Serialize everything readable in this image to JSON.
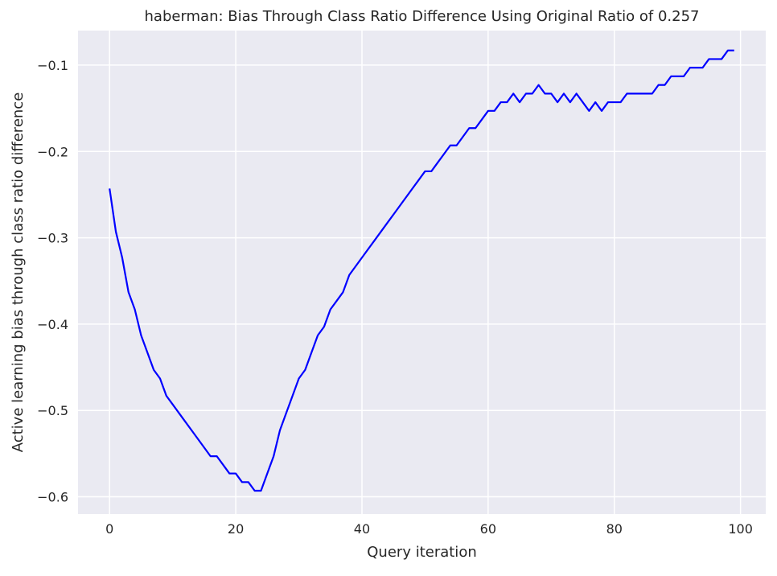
{
  "chart_data": {
    "type": "line",
    "title": "haberman: Bias Through Class Ratio Difference Using Original Ratio of 0.257",
    "xlabel": "Query iteration",
    "ylabel": "Active learning bias through class ratio difference",
    "xlim": [
      -5,
      104
    ],
    "ylim": [
      -0.62,
      -0.06
    ],
    "xticks": [
      0,
      20,
      40,
      60,
      80,
      100
    ],
    "xtick_labels": [
      "0",
      "20",
      "40",
      "60",
      "80",
      "100"
    ],
    "yticks": [
      -0.6,
      -0.5,
      -0.4,
      -0.3,
      -0.2,
      -0.1
    ],
    "ytick_labels": [
      "−0.6",
      "−0.5",
      "−0.4",
      "−0.3",
      "−0.2",
      "−0.1"
    ],
    "grid": true,
    "background": "#eaeaf2",
    "grid_color": "#ffffff",
    "series": [
      {
        "color": "#0000ff",
        "x": [
          0,
          1,
          2,
          3,
          4,
          5,
          6,
          7,
          8,
          9,
          10,
          11,
          12,
          13,
          14,
          15,
          16,
          17,
          18,
          19,
          20,
          21,
          22,
          23,
          24,
          25,
          26,
          27,
          28,
          29,
          30,
          31,
          32,
          33,
          34,
          35,
          36,
          37,
          38,
          39,
          40,
          41,
          42,
          43,
          44,
          45,
          46,
          47,
          48,
          49,
          50,
          51,
          52,
          53,
          54,
          55,
          56,
          57,
          58,
          59,
          60,
          61,
          62,
          63,
          64,
          65,
          66,
          67,
          68,
          69,
          70,
          71,
          72,
          73,
          74,
          75,
          76,
          77,
          78,
          79,
          80,
          81,
          82,
          83,
          84,
          85,
          86,
          87,
          88,
          89,
          90,
          91,
          92,
          93,
          94,
          95,
          96,
          97,
          98,
          99
        ],
        "y": [
          -0.243,
          -0.293,
          -0.323,
          -0.363,
          -0.383,
          -0.413,
          -0.433,
          -0.453,
          -0.463,
          -0.483,
          -0.493,
          -0.503,
          -0.513,
          -0.523,
          -0.533,
          -0.543,
          -0.553,
          -0.553,
          -0.563,
          -0.573,
          -0.573,
          -0.583,
          -0.583,
          -0.593,
          -0.593,
          -0.573,
          -0.553,
          -0.523,
          -0.503,
          -0.483,
          -0.463,
          -0.453,
          -0.433,
          -0.413,
          -0.403,
          -0.383,
          -0.373,
          -0.363,
          -0.343,
          -0.333,
          -0.323,
          -0.313,
          -0.303,
          -0.293,
          -0.283,
          -0.273,
          -0.263,
          -0.253,
          -0.243,
          -0.233,
          -0.223,
          -0.223,
          -0.213,
          -0.203,
          -0.193,
          -0.193,
          -0.183,
          -0.173,
          -0.173,
          -0.163,
          -0.153,
          -0.153,
          -0.143,
          -0.143,
          -0.133,
          -0.143,
          -0.133,
          -0.133,
          -0.123,
          -0.133,
          -0.133,
          -0.143,
          -0.133,
          -0.143,
          -0.133,
          -0.143,
          -0.153,
          -0.143,
          -0.153,
          -0.143,
          -0.143,
          -0.143,
          -0.133,
          -0.133,
          -0.133,
          -0.133,
          -0.133,
          -0.123,
          -0.123,
          -0.113,
          -0.113,
          -0.113,
          -0.103,
          -0.103,
          -0.103,
          -0.093,
          -0.093,
          -0.093,
          -0.083,
          -0.083
        ]
      }
    ]
  }
}
